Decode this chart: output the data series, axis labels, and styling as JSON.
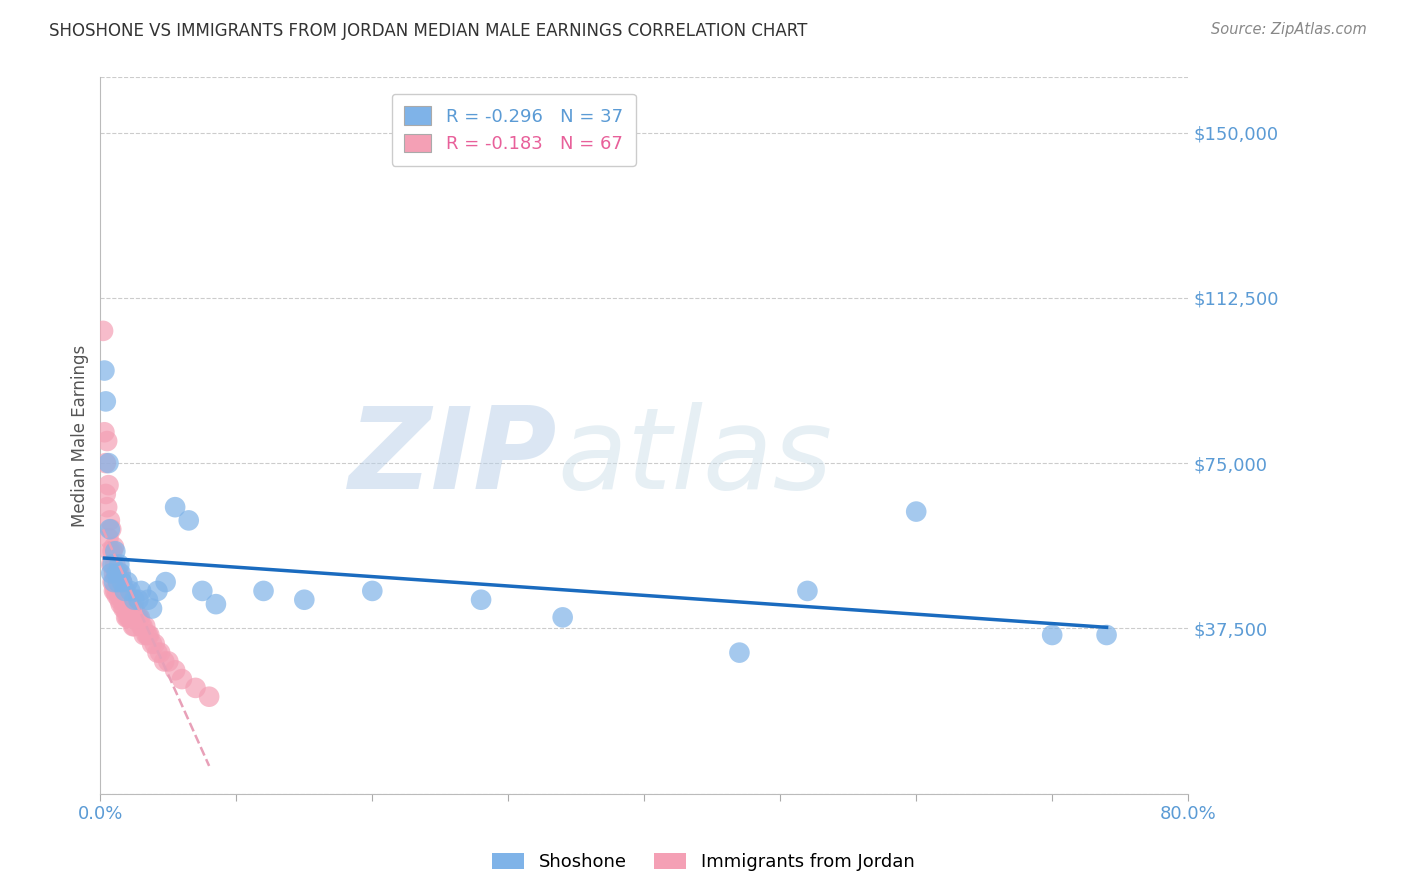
{
  "title": "SHOSHONE VS IMMIGRANTS FROM JORDAN MEDIAN MALE EARNINGS CORRELATION CHART",
  "source": "Source: ZipAtlas.com",
  "ylabel": "Median Male Earnings",
  "xlim": [
    0.0,
    0.8
  ],
  "ylim": [
    0,
    162500
  ],
  "yticks": [
    0,
    37500,
    75000,
    112500,
    150000
  ],
  "ytick_labels": [
    "",
    "$37,500",
    "$75,000",
    "$112,500",
    "$150,000"
  ],
  "xticks": [
    0.0,
    0.1,
    0.2,
    0.3,
    0.4,
    0.5,
    0.6,
    0.7,
    0.8
  ],
  "xtick_labels": [
    "0.0%",
    "",
    "",
    "",
    "",
    "",
    "",
    "",
    "80.0%"
  ],
  "shoshone_color": "#7fb3e8",
  "jordan_color": "#f4a0b5",
  "shoshone_R": -0.296,
  "shoshone_N": 37,
  "jordan_R": -0.183,
  "jordan_N": 67,
  "shoshone_line_color": "#1a6bbf",
  "jordan_line_color": "#e8a0b8",
  "axis_color": "#5b9bd5",
  "grid_color": "#cccccc",
  "watermark_zip": "ZIP",
  "watermark_atlas": "atlas",
  "shoshone_x": [
    0.003,
    0.004,
    0.006,
    0.007,
    0.008,
    0.009,
    0.01,
    0.011,
    0.012,
    0.013,
    0.014,
    0.015,
    0.016,
    0.018,
    0.02,
    0.022,
    0.025,
    0.028,
    0.03,
    0.035,
    0.038,
    0.042,
    0.048,
    0.055,
    0.065,
    0.075,
    0.085,
    0.12,
    0.15,
    0.2,
    0.28,
    0.34,
    0.47,
    0.52,
    0.6,
    0.7,
    0.74
  ],
  "shoshone_y": [
    96000,
    89000,
    75000,
    60000,
    50000,
    52000,
    48000,
    55000,
    50000,
    48000,
    52000,
    50000,
    48000,
    46000,
    48000,
    46000,
    44000,
    44000,
    46000,
    44000,
    42000,
    46000,
    48000,
    65000,
    62000,
    46000,
    43000,
    46000,
    44000,
    46000,
    44000,
    40000,
    32000,
    46000,
    64000,
    36000,
    36000
  ],
  "jordan_x": [
    0.002,
    0.003,
    0.004,
    0.004,
    0.005,
    0.005,
    0.006,
    0.006,
    0.007,
    0.007,
    0.008,
    0.008,
    0.009,
    0.009,
    0.01,
    0.01,
    0.01,
    0.011,
    0.011,
    0.012,
    0.012,
    0.013,
    0.013,
    0.014,
    0.014,
    0.015,
    0.015,
    0.016,
    0.016,
    0.017,
    0.017,
    0.018,
    0.018,
    0.019,
    0.019,
    0.02,
    0.02,
    0.021,
    0.021,
    0.022,
    0.022,
    0.023,
    0.024,
    0.024,
    0.025,
    0.025,
    0.026,
    0.027,
    0.028,
    0.029,
    0.03,
    0.031,
    0.032,
    0.033,
    0.034,
    0.035,
    0.036,
    0.038,
    0.04,
    0.042,
    0.044,
    0.047,
    0.05,
    0.055,
    0.06,
    0.07,
    0.08
  ],
  "jordan_y": [
    105000,
    82000,
    75000,
    68000,
    80000,
    65000,
    70000,
    58000,
    62000,
    55000,
    60000,
    52000,
    55000,
    48000,
    56000,
    50000,
    46000,
    52000,
    46000,
    50000,
    45000,
    50000,
    46000,
    50000,
    44000,
    48000,
    43000,
    48000,
    44000,
    46000,
    42000,
    46000,
    42000,
    46000,
    40000,
    44000,
    40000,
    44000,
    40000,
    44000,
    40000,
    42000,
    42000,
    38000,
    42000,
    38000,
    40000,
    40000,
    40000,
    40000,
    38000,
    38000,
    36000,
    38000,
    36000,
    36000,
    36000,
    34000,
    34000,
    32000,
    32000,
    30000,
    30000,
    28000,
    26000,
    24000,
    22000
  ]
}
